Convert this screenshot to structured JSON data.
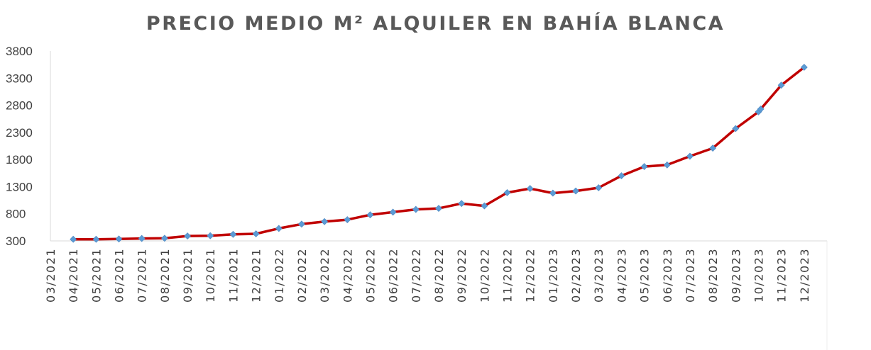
{
  "colors": {
    "line": "#c00000",
    "marker": "#5b9bd5",
    "axis": "#d9d9d9",
    "text": "#404040",
    "title": "#595959"
  },
  "chart_data": {
    "type": "line",
    "title": "PRECIO MEDIO M² ALQUILER EN BAHÍA BLANCA",
    "xlabel": "",
    "ylabel": "",
    "ylim": [
      300,
      3800
    ],
    "yticks": [
      300,
      800,
      1300,
      1800,
      2300,
      2800,
      3300,
      3800
    ],
    "grid": false,
    "legend": "none",
    "categories": [
      "03/2021",
      "04/2021",
      "05/2021",
      "06/2021",
      "07/2021",
      "08/2021",
      "09/2021",
      "10/2021",
      "11/2021",
      "12/2021",
      "01/2022",
      "02/2022",
      "03/2022",
      "04/2022",
      "05/2022",
      "06/2022",
      "07/2022",
      "08/2022",
      "09/2022",
      "10/2022",
      "11/2022",
      "12/2022",
      "01/2023",
      "02/2023",
      "03/2023",
      "04/2023",
      "05/2023",
      "06/2023",
      "07/2023",
      "08/2023",
      "09/2023",
      "10/2023",
      "11/2023",
      "12/2023"
    ],
    "series": [
      {
        "x": [
          1,
          2,
          3,
          4,
          5,
          6,
          7,
          8,
          9,
          10,
          11,
          12,
          13,
          14,
          15,
          16,
          17,
          18,
          19,
          20,
          21,
          22,
          23,
          24,
          25,
          26,
          27,
          28,
          29,
          30,
          31,
          31.1,
          32,
          33
        ],
        "values": [
          330,
          330,
          335,
          345,
          348,
          390,
          395,
          420,
          430,
          530,
          610,
          655,
          690,
          780,
          830,
          880,
          900,
          990,
          945,
          1190,
          1265,
          1180,
          1220,
          1280,
          1500,
          1670,
          1700,
          1860,
          2010,
          2370,
          2680,
          2730,
          3170,
          3500
        ]
      }
    ]
  }
}
